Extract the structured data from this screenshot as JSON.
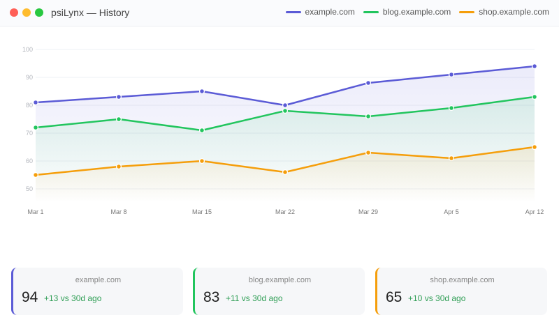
{
  "window": {
    "title": "psiLynx — History",
    "controls": {
      "close_color": "#ff5f57",
      "minimize_color": "#febc2e",
      "maximize_color": "#28c840"
    }
  },
  "legend": [
    {
      "label": "example.com",
      "color": "#5b5bd6"
    },
    {
      "label": "blog.example.com",
      "color": "#22c55e"
    },
    {
      "label": "shop.example.com",
      "color": "#f59e0b"
    }
  ],
  "chart_data": {
    "type": "line",
    "title": "",
    "xlabel": "",
    "ylabel": "",
    "categories": [
      "Mar 1",
      "Mar 8",
      "Mar 15",
      "Mar 22",
      "Mar 29",
      "Apr 5",
      "Apr 12"
    ],
    "yticks": [
      50,
      60,
      70,
      80,
      90,
      100
    ],
    "ylim": [
      45,
      102
    ],
    "grid": true,
    "legend_position": "top-right",
    "series": [
      {
        "name": "example.com",
        "color": "#5b5bd6",
        "values": [
          81,
          83,
          85,
          80,
          88,
          91,
          94
        ]
      },
      {
        "name": "blog.example.com",
        "color": "#22c55e",
        "values": [
          72,
          75,
          71,
          78,
          76,
          79,
          83
        ]
      },
      {
        "name": "shop.example.com",
        "color": "#f59e0b",
        "values": [
          55,
          58,
          60,
          56,
          63,
          61,
          65
        ]
      }
    ]
  },
  "cards": [
    {
      "domain": "example.com",
      "value": "94",
      "delta": "+13 vs 30d ago",
      "color": "#5b5bd6"
    },
    {
      "domain": "blog.example.com",
      "value": "83",
      "delta": "+11 vs 30d ago",
      "color": "#22c55e"
    },
    {
      "domain": "shop.example.com",
      "value": "65",
      "delta": "+10 vs 30d ago",
      "color": "#f59e0b"
    }
  ]
}
